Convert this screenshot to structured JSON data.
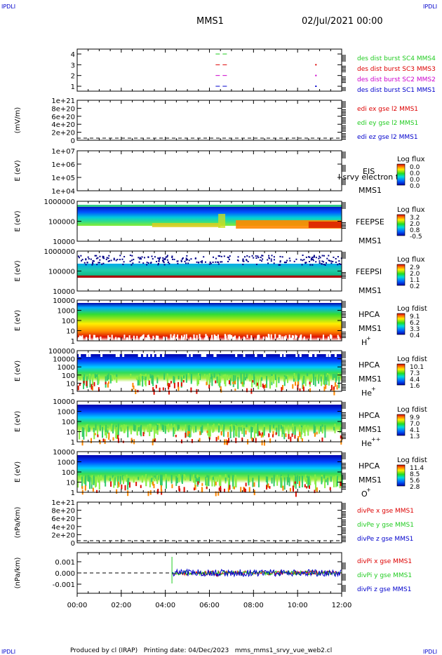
{
  "header": {
    "corner_left": "IPDLI",
    "corner_right": "IPDLI",
    "title": "MMS1",
    "date": "02/Jul/2021 00:00"
  },
  "footer": {
    "text": "Produced by cl (IRAP)   Printing date: 04/Dec/2023   mms_mms1_srvy_vue_web2.cl",
    "corner_left": "IPDLI",
    "corner_right": "IPDLI"
  },
  "colors": {
    "red": "#dd0000",
    "green": "#22cc22",
    "blue": "#0000cc",
    "magenta": "#cc00cc"
  },
  "chart_data": {
    "type": "heatmap",
    "time_axis": {
      "labels": [
        "00:00",
        "02:00",
        "04:00",
        "06:00",
        "08:00",
        "10:00",
        "12:00"
      ],
      "range_hours": [
        0,
        12
      ]
    },
    "panels": [
      {
        "id": "burst",
        "type": "scatter",
        "ylabel": "",
        "yticks": [
          "4",
          "3",
          "2",
          "1"
        ],
        "series": [
          {
            "name": "des dist burst SC1 MMS1",
            "color": "#0000cc",
            "y": 1,
            "x": [
              6.6,
              10.8
            ]
          },
          {
            "name": "des dist burst SC2 MMS2",
            "color": "#cc00cc",
            "y": 2,
            "x": [
              6.6,
              10.8
            ]
          },
          {
            "name": "des dist burst SC3 MMS3",
            "color": "#dd0000",
            "y": 3,
            "x": [
              6.6,
              10.8
            ]
          },
          {
            "name": "des dist burst SC4 MMS4",
            "color": "#22cc22",
            "y": 4,
            "x": [
              6.6
            ]
          }
        ]
      },
      {
        "id": "edi",
        "type": "line",
        "ylabel": "(mV/m)",
        "yticks": [
          "1e+21",
          "8e+20",
          "6e+20",
          "4e+20",
          "2e+20",
          "0"
        ],
        "series": [
          {
            "name": "edi ex gse l2 MMS1",
            "color": "#dd0000"
          },
          {
            "name": "edi ey gse l2 MMS1",
            "color": "#22cc22"
          },
          {
            "name": "edi ez gse l2 MMS1",
            "color": "#0000cc"
          }
        ]
      },
      {
        "id": "eis",
        "type": "heatmap",
        "ylabel": "E (eV)",
        "yticks": [
          "1e+07",
          "1e+06",
          "1e+05",
          "1e+04"
        ],
        "labels": [
          "EIS",
          "l srvy electron to",
          "MMS1"
        ],
        "colorbar_title": "Log flux",
        "colorbar_ticks": [
          "0.0",
          "0.0",
          "0.0",
          "0.0"
        ]
      },
      {
        "id": "feeps_e",
        "type": "heatmap",
        "ylabel": "E (eV)",
        "yticks": [
          "1000000",
          "100000",
          "10000"
        ],
        "labels": [
          "FEEPSE",
          "MMS1"
        ],
        "colorbar_title": "Log flux",
        "colorbar_ticks": [
          "3.2",
          "2.0",
          "0.8",
          "-0.5"
        ]
      },
      {
        "id": "feeps_i",
        "type": "heatmap",
        "ylabel": "E (eV)",
        "yticks": [
          "1000000",
          "100000",
          "10000"
        ],
        "labels": [
          "FEEPSI",
          "MMS1"
        ],
        "colorbar_title": "Log flux",
        "colorbar_ticks": [
          "2.9",
          "2.0",
          "1.1",
          "0.2"
        ]
      },
      {
        "id": "hpca_h",
        "type": "heatmap",
        "ylabel": "E (eV)",
        "yticks": [
          "10000",
          "1000",
          "100",
          "10",
          "1"
        ],
        "labels": [
          "HPCA",
          "MMS1",
          "H",
          "+"
        ],
        "colorbar_title": "Log fdist",
        "colorbar_ticks": [
          "9.1",
          "6.2",
          "3.3",
          "0.4"
        ]
      },
      {
        "id": "hpca_he",
        "type": "heatmap",
        "ylabel": "E (eV)",
        "yticks": [
          "100000",
          "10000",
          "1000",
          "100",
          "10",
          "1"
        ],
        "labels": [
          "HPCA",
          "MMS1",
          "He",
          "+"
        ],
        "colorbar_title": "Log fdist",
        "colorbar_ticks": [
          "10.1",
          "7.3",
          "4.4",
          "1.6"
        ]
      },
      {
        "id": "hpca_hepp",
        "type": "heatmap",
        "ylabel": "E (eV)",
        "yticks": [
          "10000",
          "1000",
          "100",
          "10",
          "1"
        ],
        "labels": [
          "HPCA",
          "MMS1",
          "He",
          "++"
        ],
        "colorbar_title": "Log fdist",
        "colorbar_ticks": [
          "9.9",
          "7.0",
          "4.1",
          "1.3"
        ]
      },
      {
        "id": "hpca_o",
        "type": "heatmap",
        "ylabel": "E (eV)",
        "yticks": [
          "10000",
          "1000",
          "100",
          "10",
          "1"
        ],
        "labels": [
          "HPCA",
          "MMS1",
          "O",
          "+"
        ],
        "colorbar_title": "Log fdist",
        "colorbar_ticks": [
          "11.4",
          "8.5",
          "5.6",
          "2.8"
        ]
      },
      {
        "id": "divpe",
        "type": "line",
        "ylabel": "(nPa/km)",
        "yticks": [
          "1e+21",
          "8e+20",
          "6e+20",
          "4e+20",
          "2e+20",
          "0"
        ],
        "series": [
          {
            "name": "divPe x gse MMS1",
            "color": "#dd0000"
          },
          {
            "name": "divPe y gse MMS1",
            "color": "#22cc22"
          },
          {
            "name": "divPe z gse MMS1",
            "color": "#0000cc"
          }
        ]
      },
      {
        "id": "divpi",
        "type": "line",
        "ylabel": "(nPa/km)",
        "yticks": [
          "0.001",
          "0.000",
          "-0.001"
        ],
        "data_start_hour": 4.3,
        "series": [
          {
            "name": "divPi x gse MMS1",
            "color": "#dd0000"
          },
          {
            "name": "divPi y gse MMS1",
            "color": "#22cc22"
          },
          {
            "name": "divPi z gse MMS1",
            "color": "#0000cc"
          }
        ]
      }
    ]
  }
}
